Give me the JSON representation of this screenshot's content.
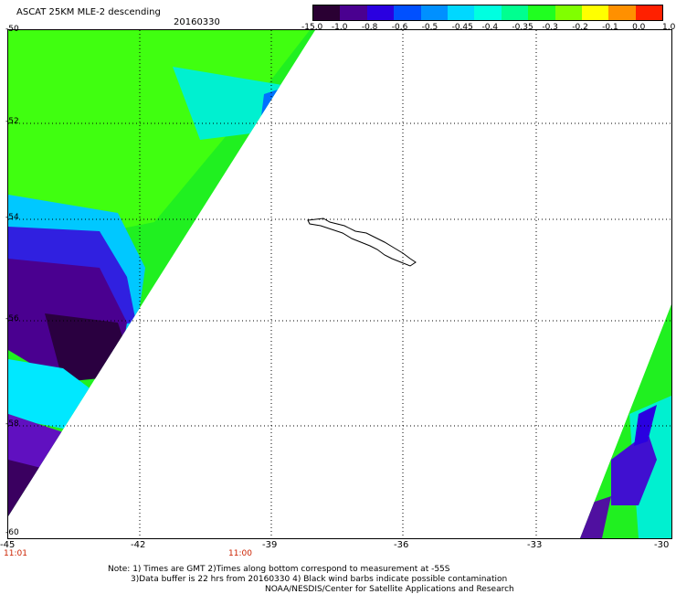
{
  "header": {
    "title": "ASCAT 25KM MLE-2 descending",
    "date": "20160330"
  },
  "colorbar": {
    "labels": [
      "-15.0",
      "-1.0",
      "-0.8",
      "-0.6",
      "-0.5",
      "-0.45",
      "-0.4",
      "-0.35",
      "-0.3",
      "-0.2",
      "-0.1",
      "0.0",
      "1.0"
    ],
    "colors": [
      "#2a0033",
      "#4a0090",
      "#2a00e0",
      "#0050ff",
      "#0090ff",
      "#00d8ff",
      "#00ffe0",
      "#00ff90",
      "#20ff20",
      "#80ff00",
      "#ffff00",
      "#ff9000",
      "#ff2000"
    ]
  },
  "axes": {
    "lat_labels": [
      "-50",
      "-52",
      "-54",
      "-56",
      "-58",
      "-60"
    ],
    "lon_labels": [
      "-45",
      "-42",
      "-39",
      "-36",
      "-33",
      "-30"
    ]
  },
  "times": {
    "left": "11:01",
    "mid": "11:00"
  },
  "notes": {
    "line1": "Note: 1) Times are GMT 2)Times along bottom correspond to measurement at -55S",
    "line2": "3)Data buffer is 22 hrs from 20160330 4) Black wind barbs indicate possible contamination",
    "line3": "NOAA/NESDIS/Center for Satellite Applications and Research"
  }
}
